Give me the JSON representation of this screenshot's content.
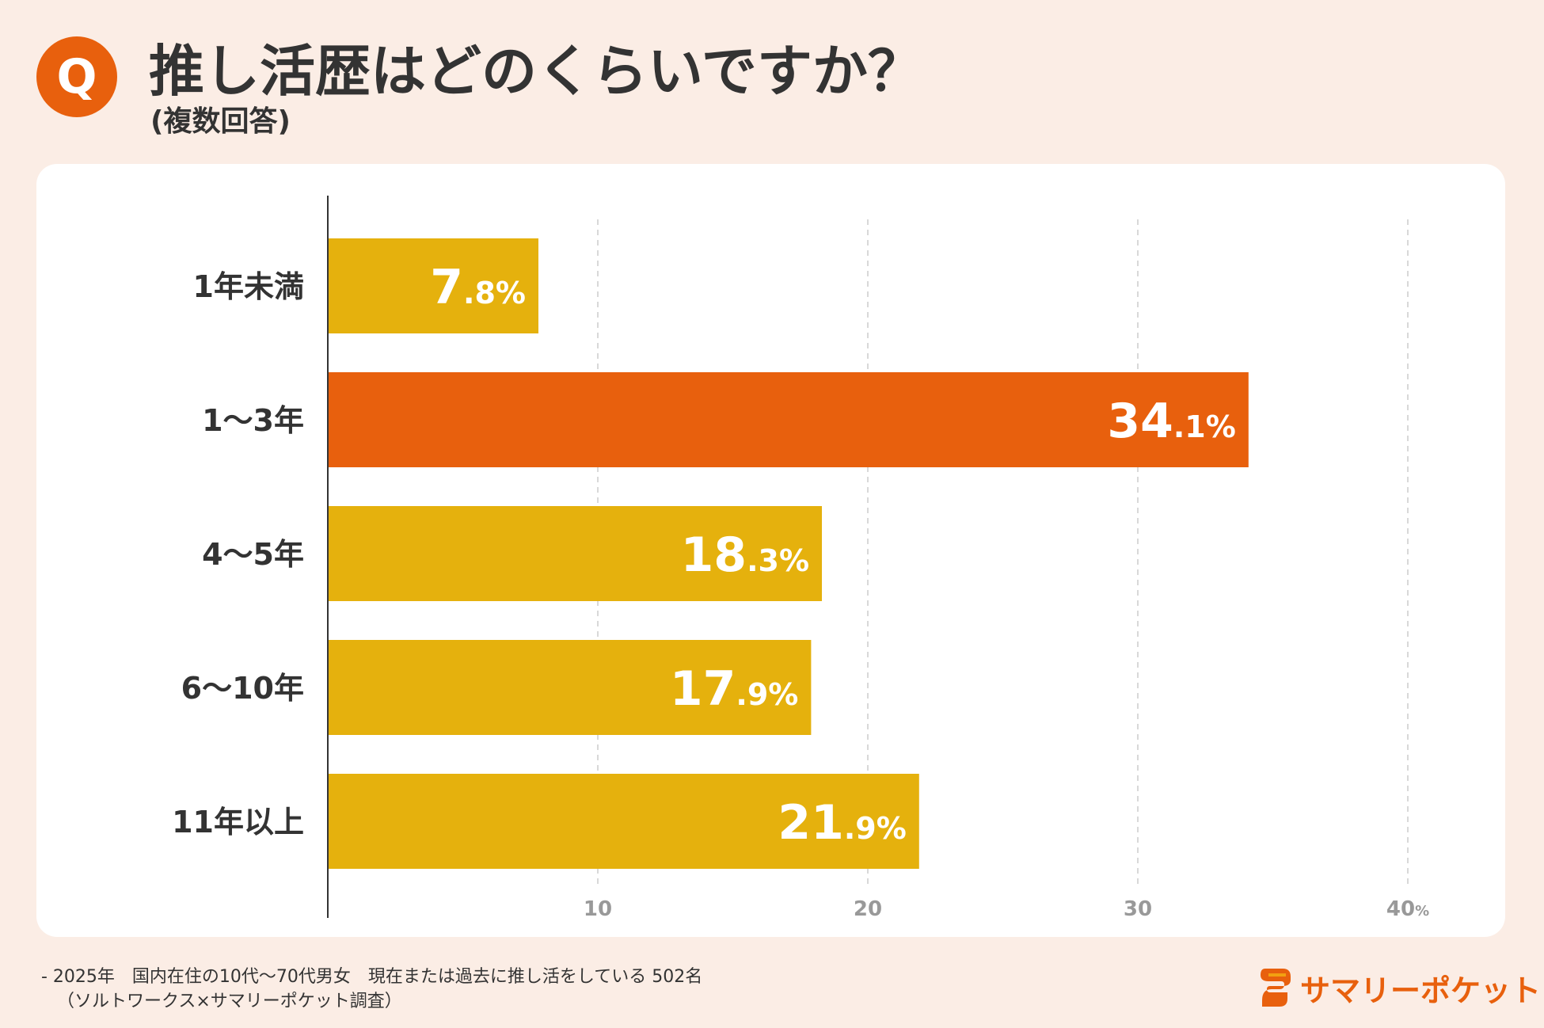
{
  "header": {
    "badge": "Q",
    "title": "推し活歴はどのくらいですか？",
    "subtitle": "(複数回答)"
  },
  "colors": {
    "highlight": "#e8600d",
    "bar": "#e5b10d",
    "axis": "#333333",
    "grid": "#cccccc",
    "background": "#fbede5"
  },
  "chart_data": {
    "type": "bar",
    "orientation": "horizontal",
    "title": "推し活歴はどのくらいですか？",
    "categories": [
      "1年未満",
      "1〜3年",
      "4〜5年",
      "6〜10年",
      "11年以上"
    ],
    "values": [
      7.8,
      34.1,
      18.3,
      17.9,
      21.9
    ],
    "value_labels": [
      {
        "int": "7",
        "dec": ".8",
        "unit": "%"
      },
      {
        "int": "34",
        "dec": ".1",
        "unit": "%"
      },
      {
        "int": "18",
        "dec": ".3",
        "unit": "%"
      },
      {
        "int": "17",
        "dec": ".9",
        "unit": "%"
      },
      {
        "int": "21",
        "dec": ".9",
        "unit": "%"
      }
    ],
    "highlight_index": 1,
    "xlim": [
      0,
      40
    ],
    "xticks": [
      10,
      20,
      30,
      40
    ],
    "xtick_labels": [
      "10",
      "20",
      "30",
      "40"
    ],
    "xtick_unit": "%",
    "grid": true,
    "grid_style": "dashed"
  },
  "footnote": {
    "line1": "- 2025年　国内在住の10代〜70代男女　現在または過去に推し活をしている 502名",
    "line2": "（ソルトワークス×サマリーポケット調査）"
  },
  "brand": {
    "icon": "s-logo-icon",
    "name": "サマリーポケット"
  }
}
